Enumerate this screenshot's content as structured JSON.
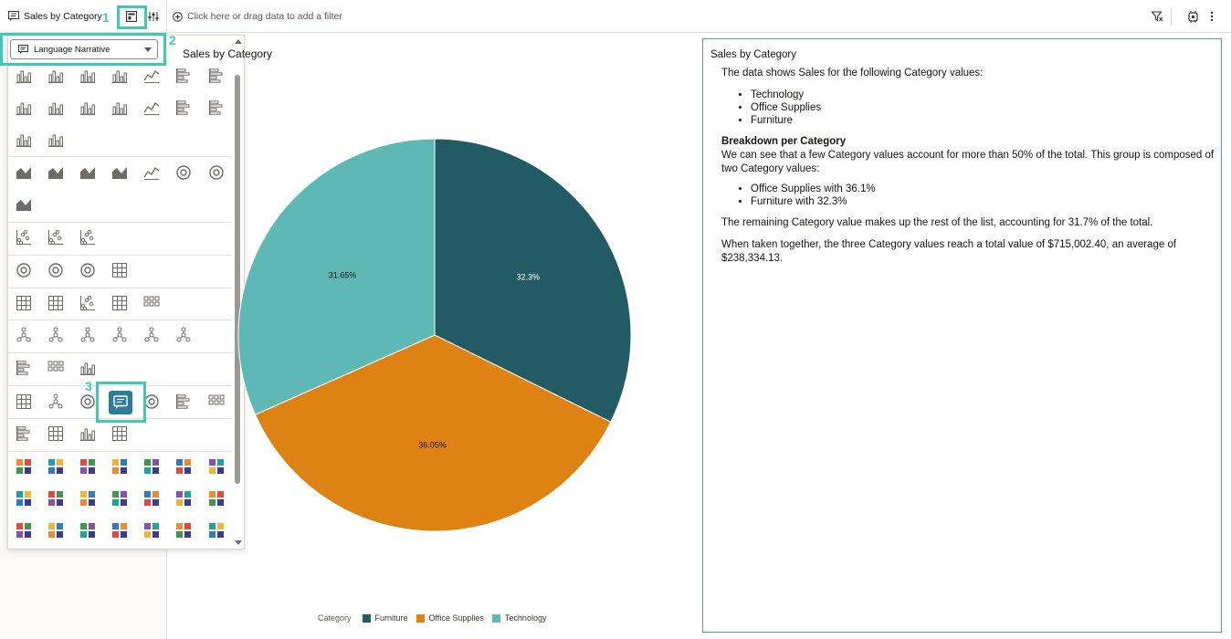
{
  "topbar": {
    "title": "Sales by Category",
    "filter_placeholder": "Click here or drag data to add a filter"
  },
  "picker": {
    "selected_label": "Language Narrative"
  },
  "callouts": [
    "1",
    "2",
    "3"
  ],
  "chart": {
    "title": "Sales by Category",
    "legend_title": "Category"
  },
  "chart_data": {
    "type": "pie",
    "title": "Sales by Category",
    "categories": [
      "Furniture",
      "Office Supplies",
      "Technology"
    ],
    "values": [
      32.3,
      36.05,
      31.65
    ],
    "labels": [
      "32.3%",
      "36.05%",
      "31.65%"
    ],
    "colors": [
      "#225b63",
      "#df8214",
      "#5eb9b5"
    ],
    "legend_title": "Category",
    "legend_position": "bottom"
  },
  "narrative": {
    "title": "Sales by Category",
    "intro": "The data shows Sales for the following Category values:",
    "items": [
      "Technology",
      "Office Supplies",
      "Furniture"
    ],
    "heading": "Breakdown per Category",
    "breakdown": "We can see that a few Category values account for more than 50% of the total. This group is composed of two Category values:",
    "group_items": [
      "Office Supplies with 36.1%",
      "Furniture with 32.3%"
    ],
    "remaining": "The remaining Category value makes up the rest of the list, accounting for 31.7% of the total.",
    "summary": "When taken together, the three Category values reach a total value of $715,002.40, an average of $238,334.13."
  },
  "colors": {
    "accent": "#3fc8b4",
    "selected": "#2d7d9a"
  }
}
